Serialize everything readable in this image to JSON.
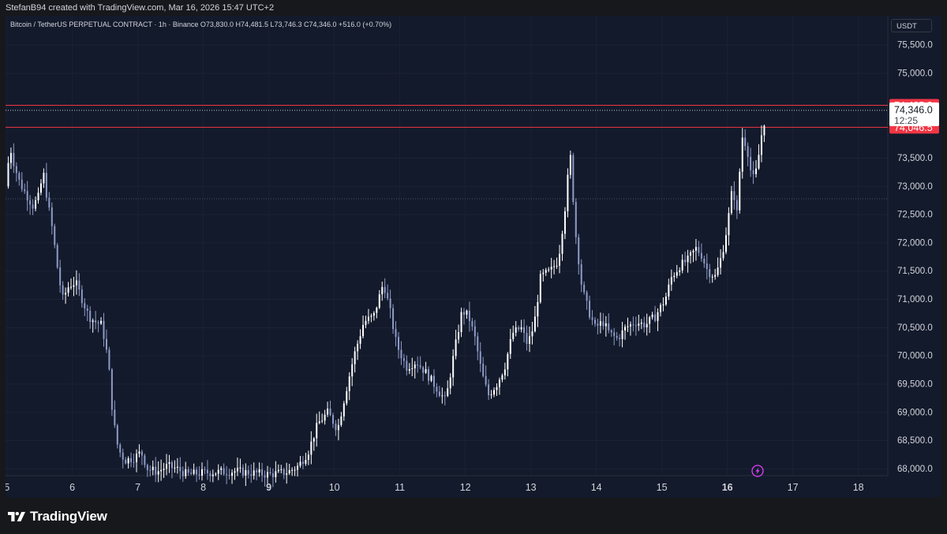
{
  "header": {
    "attribution": "StefanB94 created with TradingView.com, Mar 16, 2026 15:47 UTC+2"
  },
  "legend": {
    "text": "Bitcoin / TetherUS PERPETUAL CONTRACT · 1h · Binance  O73,830.0  H74,481.5  L73,746.3  C74,346.0  +516.0 (+0.70%)"
  },
  "currency": "USDT",
  "brand": {
    "name": "TradingView"
  },
  "colors": {
    "background": "#131a2b",
    "candle": "#ffffff",
    "candle_down": "#8f9bc8",
    "resistance_line": "#f23645",
    "price_label": "#f23645",
    "current_label": "#ffffff",
    "alert_icon": "#e040fb"
  },
  "chart_data": {
    "type": "candlestick",
    "symbol": "Bitcoin / TetherUS PERPETUAL CONTRACT",
    "timeframe": "1h",
    "exchange": "Binance",
    "ohlc": {
      "open": 73830.0,
      "high": 74481.5,
      "low": 73746.3,
      "close": 74346.0,
      "change": 516.0,
      "change_pct": 0.7
    },
    "y_ticks": [
      {
        "value": 75500,
        "label": "75,500.0"
      },
      {
        "value": 75000,
        "label": "75,000.0"
      },
      {
        "value": 73500,
        "label": "73,500.0"
      },
      {
        "value": 73000,
        "label": "73,000.0"
      },
      {
        "value": 72500,
        "label": "72,500.0"
      },
      {
        "value": 72000,
        "label": "72,000.0"
      },
      {
        "value": 71500,
        "label": "71,500.0"
      },
      {
        "value": 71000,
        "label": "71,000.0"
      },
      {
        "value": 70500,
        "label": "70,500.0"
      },
      {
        "value": 70000,
        "label": "70,000.0"
      },
      {
        "value": 69500,
        "label": "69,500.0"
      },
      {
        "value": 69000,
        "label": "69,000.0"
      },
      {
        "value": 68500,
        "label": "68,500.0"
      },
      {
        "value": 68000,
        "label": "68,000.0"
      }
    ],
    "ylim": [
      67880,
      76020
    ],
    "x_ticks": [
      {
        "day": 5,
        "label": "5",
        "bold": false
      },
      {
        "day": 6,
        "label": "6",
        "bold": false
      },
      {
        "day": 7,
        "label": "7",
        "bold": false
      },
      {
        "day": 8,
        "label": "8",
        "bold": false
      },
      {
        "day": 9,
        "label": "9",
        "bold": true
      },
      {
        "day": 10,
        "label": "10",
        "bold": false
      },
      {
        "day": 11,
        "label": "11",
        "bold": false
      },
      {
        "day": 12,
        "label": "12",
        "bold": false
      },
      {
        "day": 13,
        "label": "13",
        "bold": false
      },
      {
        "day": 14,
        "label": "14",
        "bold": false
      },
      {
        "day": 15,
        "label": "15",
        "bold": false
      },
      {
        "day": 16,
        "label": "16",
        "bold": true
      },
      {
        "day": 17,
        "label": "17",
        "bold": false
      },
      {
        "day": 18,
        "label": "18",
        "bold": false
      }
    ],
    "xlim": [
      4.98,
      18.45
    ],
    "horizontal_levels": [
      {
        "value": 74435.8,
        "label": "74,435.8",
        "style": "resistance"
      },
      {
        "value": 74046.5,
        "label": "74,046.5",
        "style": "resistance"
      }
    ],
    "current_price": {
      "value": 74346.0,
      "label": "74,346.0",
      "countdown": "12:25"
    },
    "dotted_level": 72780,
    "price_path": [
      [
        4.98,
        73000
      ],
      [
        5.05,
        73700
      ],
      [
        5.12,
        73350
      ],
      [
        5.2,
        73050
      ],
      [
        5.3,
        72850
      ],
      [
        5.4,
        72650
      ],
      [
        5.5,
        72850
      ],
      [
        5.55,
        73300
      ],
      [
        5.62,
        72750
      ],
      [
        5.7,
        72200
      ],
      [
        5.78,
        71500
      ],
      [
        5.85,
        71000
      ],
      [
        5.95,
        71250
      ],
      [
        6.05,
        71300
      ],
      [
        6.15,
        71000
      ],
      [
        6.25,
        70700
      ],
      [
        6.35,
        70600
      ],
      [
        6.45,
        70550
      ],
      [
        6.55,
        69900
      ],
      [
        6.62,
        68900
      ],
      [
        6.7,
        68350
      ],
      [
        6.8,
        68150
      ],
      [
        6.95,
        68200
      ],
      [
        7.05,
        68300
      ],
      [
        7.15,
        68000
      ],
      [
        7.3,
        67950
      ],
      [
        7.45,
        68050
      ],
      [
        7.6,
        68000
      ],
      [
        7.75,
        67900
      ],
      [
        8.0,
        67930
      ],
      [
        8.5,
        67960
      ],
      [
        9.0,
        67900
      ],
      [
        9.3,
        67950
      ],
      [
        9.45,
        68050
      ],
      [
        9.6,
        68300
      ],
      [
        9.75,
        68800
      ],
      [
        9.9,
        69000
      ],
      [
        10.05,
        68700
      ],
      [
        10.2,
        69500
      ],
      [
        10.3,
        70000
      ],
      [
        10.45,
        70600
      ],
      [
        10.6,
        70700
      ],
      [
        10.75,
        71300
      ],
      [
        10.85,
        70800
      ],
      [
        10.95,
        70200
      ],
      [
        11.1,
        69800
      ],
      [
        11.25,
        69900
      ],
      [
        11.4,
        69700
      ],
      [
        11.55,
        69450
      ],
      [
        11.7,
        69200
      ],
      [
        11.82,
        70000
      ],
      [
        11.95,
        70800
      ],
      [
        12.05,
        70700
      ],
      [
        12.15,
        70300
      ],
      [
        12.25,
        69700
      ],
      [
        12.35,
        69300
      ],
      [
        12.48,
        69500
      ],
      [
        12.6,
        69800
      ],
      [
        12.72,
        70400
      ],
      [
        12.85,
        70500
      ],
      [
        12.95,
        70200
      ],
      [
        13.05,
        70550
      ],
      [
        13.15,
        71400
      ],
      [
        13.3,
        71500
      ],
      [
        13.42,
        71700
      ],
      [
        13.52,
        72600
      ],
      [
        13.6,
        73600
      ],
      [
        13.68,
        72200
      ],
      [
        13.78,
        71200
      ],
      [
        13.88,
        70800
      ],
      [
        13.98,
        70500
      ],
      [
        14.1,
        70600
      ],
      [
        14.2,
        70400
      ],
      [
        14.32,
        70300
      ],
      [
        14.45,
        70500
      ],
      [
        14.6,
        70600
      ],
      [
        14.75,
        70550
      ],
      [
        14.9,
        70700
      ],
      [
        15.05,
        71000
      ],
      [
        15.15,
        71400
      ],
      [
        15.28,
        71600
      ],
      [
        15.4,
        71700
      ],
      [
        15.52,
        71900
      ],
      [
        15.6,
        71800
      ],
      [
        15.7,
        71500
      ],
      [
        15.82,
        71400
      ],
      [
        15.92,
        71800
      ],
      [
        16.0,
        72300
      ],
      [
        16.08,
        73000
      ],
      [
        16.15,
        72500
      ],
      [
        16.22,
        73900
      ],
      [
        16.3,
        73700
      ],
      [
        16.38,
        73100
      ],
      [
        16.45,
        73300
      ],
      [
        16.52,
        73900
      ],
      [
        16.6,
        74346
      ]
    ]
  }
}
